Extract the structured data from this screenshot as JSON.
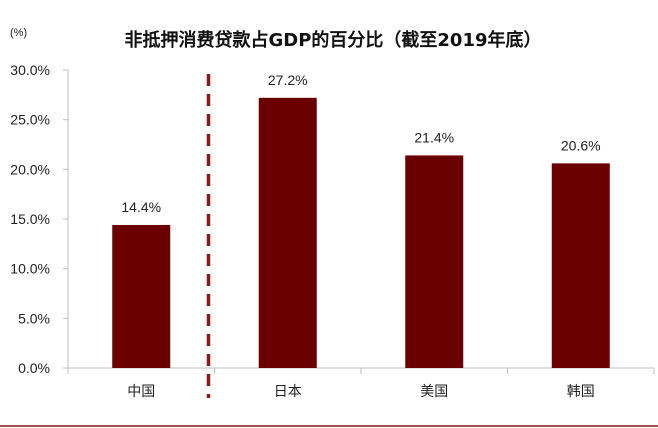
{
  "chart_data": {
    "type": "bar",
    "title": "非抵押消费贷款占GDP的百分比（截至2019年底）",
    "unit_label": "(%)",
    "categories": [
      "中国",
      "日本",
      "美国",
      "韩国"
    ],
    "values": [
      14.4,
      27.2,
      21.4,
      20.6
    ],
    "value_labels": [
      "14.4%",
      "27.2%",
      "21.4%",
      "20.6%"
    ],
    "ylim": [
      0,
      30
    ],
    "yticks": [
      0,
      5,
      10,
      15,
      20,
      25,
      30
    ],
    "ytick_labels": [
      "0.0%",
      "5.0%",
      "10.0%",
      "15.0%",
      "20.0%",
      "25.0%",
      "30.0%"
    ],
    "grid": false,
    "legend": "none",
    "divider_after_category": 0,
    "colors": {
      "bar": "#6b0000",
      "divider": "#8b1a1a",
      "axis": "#bfbfbf",
      "frame_rule": "#8b1a1a"
    }
  }
}
